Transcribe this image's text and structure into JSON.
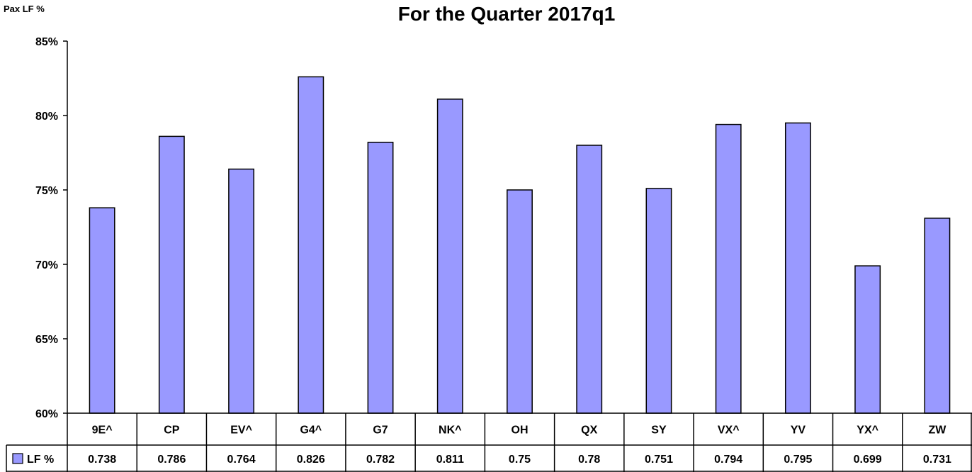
{
  "chart_data": {
    "type": "bar",
    "title": "For the Quarter 2017q1",
    "ylabel": "Pax LF %",
    "xlabel": "",
    "categories": [
      "9E^",
      "CP",
      "EV^",
      "G4^",
      "G7",
      "NK^",
      "OH",
      "QX",
      "SY",
      "VX^",
      "YV",
      "YX^",
      "ZW"
    ],
    "series": [
      {
        "name": "LF %",
        "values": [
          0.738,
          0.786,
          0.764,
          0.826,
          0.782,
          0.811,
          0.75,
          0.78,
          0.751,
          0.794,
          0.795,
          0.699,
          0.731
        ],
        "value_labels": [
          "0.738",
          "0.786",
          "0.764",
          "0.826",
          "0.782",
          "0.811",
          "0.75",
          "0.78",
          "0.751",
          "0.794",
          "0.795",
          "0.699",
          "0.731"
        ]
      }
    ],
    "ylim": [
      0.6,
      0.85
    ],
    "yticks": [
      0.6,
      0.65,
      0.7,
      0.75,
      0.8,
      0.85
    ],
    "ytick_labels": [
      "60%",
      "65%",
      "70%",
      "75%",
      "80%",
      "85%"
    ],
    "grid": false,
    "legend": "in data table",
    "data_table": true,
    "colors": {
      "bar_fill": "#9999ff",
      "bar_stroke": "#000000",
      "axis": "#000000",
      "background": "#ffffff"
    }
  }
}
